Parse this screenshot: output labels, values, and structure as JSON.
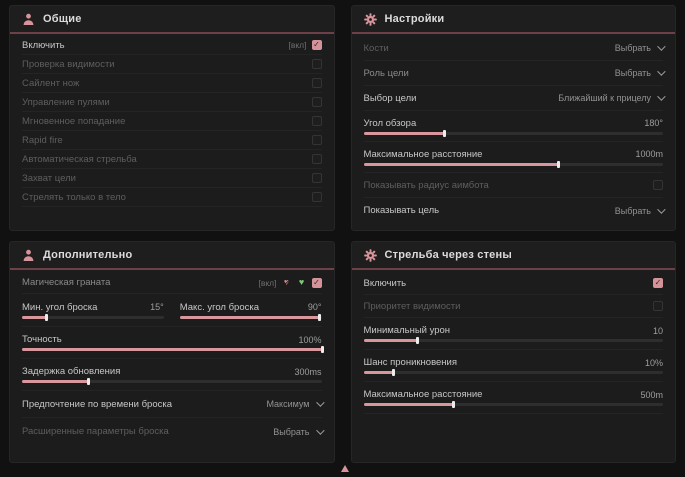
{
  "ui": {
    "accent": "#d8949a",
    "check_glyph": "✓",
    "heart_glyph": "♥"
  },
  "panels": {
    "general": {
      "title": "Общие",
      "rows": [
        {
          "label": "Включить",
          "tag": "[вкл]",
          "checked": true
        },
        {
          "label": "Проверка видимости",
          "checked": false
        },
        {
          "label": "Сайлент нож",
          "checked": false
        },
        {
          "label": "Управление пулями",
          "checked": false
        },
        {
          "label": "Мгновенное попадание",
          "checked": false
        },
        {
          "label": "Rapid fire",
          "checked": false
        },
        {
          "label": "Автоматическая стрельба",
          "checked": false
        },
        {
          "label": "Захват цели",
          "checked": false
        },
        {
          "label": "Стрелять только в тело",
          "checked": false
        }
      ]
    },
    "settings": {
      "title": "Настройки",
      "rows": {
        "bones": {
          "label": "Кости",
          "value": "Выбрать"
        },
        "target_role": {
          "label": "Роль цели",
          "value": "Выбрать"
        },
        "target_select": {
          "label": "Выбор цели",
          "value": "Ближайший к прицелу"
        },
        "fov": {
          "label": "Угол обзора",
          "value": "180°",
          "fill": 27
        },
        "max_distance": {
          "label": "Максимальное расстояние",
          "value": "1000m",
          "fill": 65
        },
        "show_radius": {
          "label": "Показывать радиус аимбота",
          "checked": false
        },
        "show_target": {
          "label": "Показывать цель",
          "value": "Выбрать"
        }
      }
    },
    "additional": {
      "title": "Дополнительно",
      "rows": {
        "magic_grenade": {
          "label": "Магическая граната",
          "tag": "[вкл]",
          "checked": true
        },
        "min_throw": {
          "label": "Мин. угол броска",
          "value": "15°",
          "fill": 17
        },
        "max_throw": {
          "label": "Макс. угол броска",
          "value": "90°",
          "fill": 98
        },
        "accuracy": {
          "label": "Точность",
          "value": "100%",
          "fill": 100
        },
        "update_delay": {
          "label": "Задержка обновления",
          "value": "300ms",
          "fill": 22
        },
        "throw_time": {
          "label": "Предпочтение по времени броска",
          "value": "Максимум"
        },
        "advanced": {
          "label": "Расширенные параметры броска",
          "value": "Выбрать"
        }
      }
    },
    "wallbang": {
      "title": "Стрельба через стены",
      "rows": {
        "enable": {
          "label": "Включить",
          "checked": true
        },
        "visibility_priority": {
          "label": "Приоритет видимости",
          "checked": false
        },
        "min_damage": {
          "label": "Минимальный урон",
          "value": "10",
          "fill": 18
        },
        "penetration_chance": {
          "label": "Шанс проникновения",
          "value": "10%",
          "fill": 10
        },
        "max_distance": {
          "label": "Максимальное расстояние",
          "value": "500m",
          "fill": 30
        }
      }
    }
  }
}
